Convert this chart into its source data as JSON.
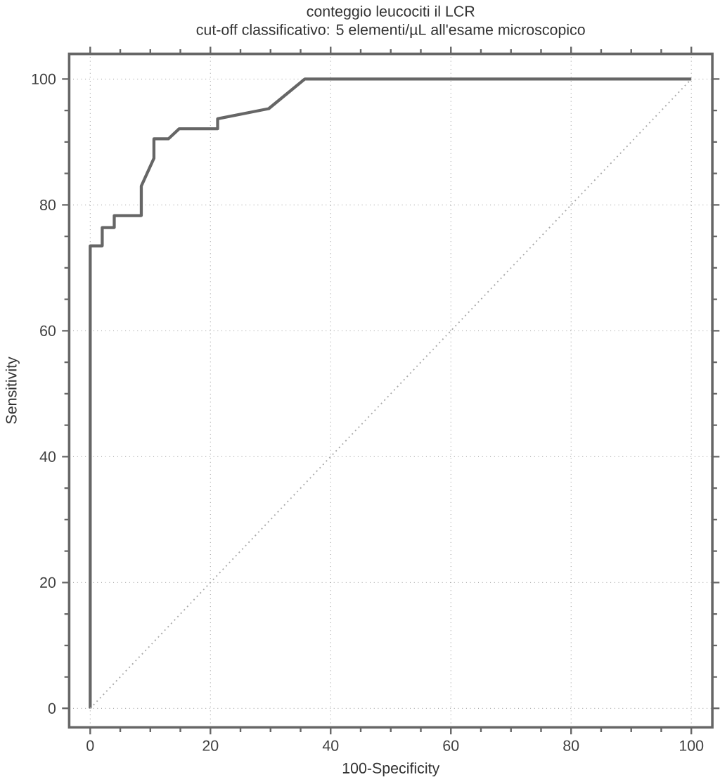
{
  "chart_data": {
    "type": "line",
    "title": "conteggio leucociti il LCR",
    "subtitle": "cut-off classificativo: 5 elementi/µL all'esame microscopico",
    "xlabel": "100-Specificity",
    "ylabel": "Sensitivity",
    "xlim": [
      -3.5,
      103.5
    ],
    "ylim": [
      -3,
      104
    ],
    "xticks": [
      0,
      20,
      40,
      60,
      80,
      100
    ],
    "yticks": [
      0,
      20,
      40,
      60,
      80,
      100
    ],
    "grid": true,
    "series": [
      {
        "color": "#666666",
        "x": [
          0,
          0,
          2.0,
          2.0,
          4.0,
          4.0,
          8.5,
          8.5,
          10.6,
          10.6,
          13.0,
          14.8,
          21.2,
          21.2,
          29.7,
          35.7,
          100
        ],
        "values": [
          0,
          73.5,
          73.5,
          76.4,
          76.4,
          78.3,
          78.3,
          83.0,
          87.4,
          90.5,
          90.5,
          92.1,
          92.1,
          93.7,
          95.3,
          100,
          100
        ]
      },
      {
        "color": "#aaaaaa",
        "line_style": "dotted",
        "x": [
          0,
          100
        ],
        "values": [
          0,
          100
        ]
      }
    ]
  }
}
